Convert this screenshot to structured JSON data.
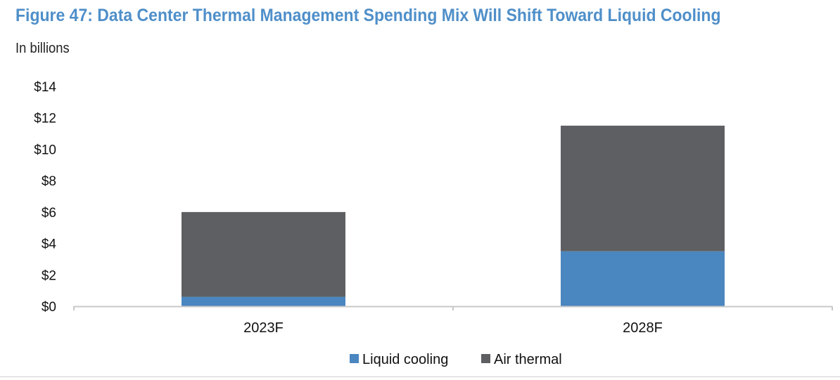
{
  "colors": {
    "title": "#4f8fc9",
    "liquid": "#4a86bf",
    "air": "#5e5f63",
    "axis": "#c8c8c8"
  },
  "title": "Figure 47: Data Center Thermal Management Spending Mix Will Shift Toward Liquid Cooling",
  "subtitle": "In billions",
  "chart_data": {
    "type": "bar",
    "stacked": true,
    "categories": [
      "2023F",
      "2028F"
    ],
    "series": [
      {
        "name": "Liquid cooling",
        "values": [
          0.6,
          3.5
        ]
      },
      {
        "name": "Air thermal",
        "values": [
          5.4,
          8.0
        ]
      }
    ],
    "ylim": [
      0,
      14
    ],
    "yticks": [
      0,
      2,
      4,
      6,
      8,
      10,
      12,
      14
    ],
    "ytick_labels": [
      "$0",
      "$2",
      "$4",
      "$6",
      "$8",
      "$10",
      "$12",
      "$14"
    ],
    "xlabel": "",
    "ylabel": "",
    "grid": false,
    "legend_position": "bottom"
  }
}
